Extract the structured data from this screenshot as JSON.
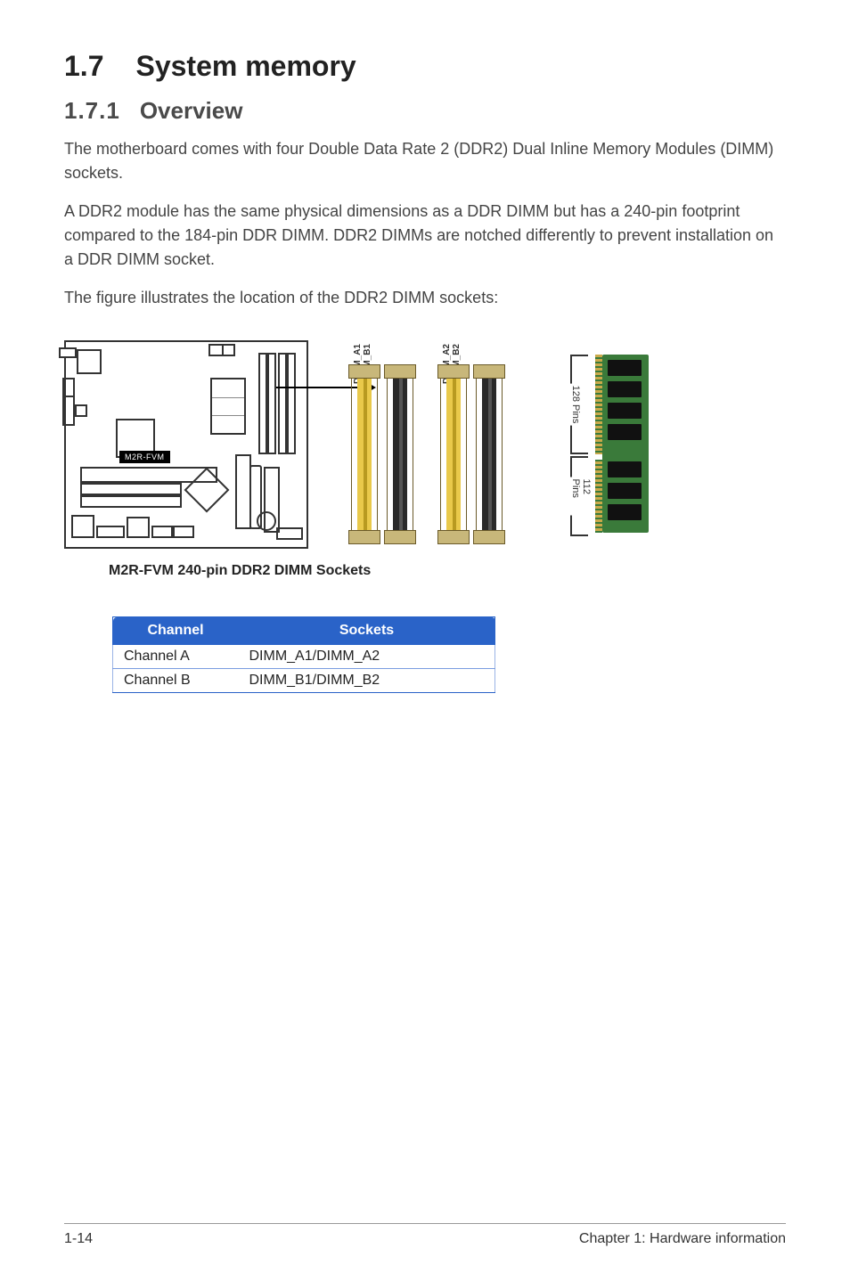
{
  "section": {
    "number": "1.7",
    "title": "System memory"
  },
  "subsection": {
    "number": "1.7.1",
    "title": "Overview"
  },
  "paragraphs": {
    "p1": "The motherboard comes with four Double Data Rate 2 (DDR2) Dual Inline Memory Modules (DIMM) sockets.",
    "p2": "A DDR2 module has the same physical dimensions as a DDR DIMM but has a 240-pin footprint compared to the 184-pin DDR DIMM. DDR2 DIMMs are notched differently to prevent installation on a DDR DIMM socket.",
    "p3": "The figure illustrates the location of the DDR2 DIMM sockets:"
  },
  "figure": {
    "board_label": "M2R-FVM",
    "dimm_labels": {
      "pair1_a": "DIMM_A1",
      "pair1_b": "DIMM_B1",
      "pair2_a": "DIMM_A2",
      "pair2_b": "DIMM_B2"
    },
    "pins_top": "128 Pins",
    "pins_bottom": "112 Pins",
    "slot_colors": {
      "yellow": "#e9c94a",
      "black": "#2a2a2a"
    },
    "caption": "M2R-FVM 240-pin DDR2 DIMM Sockets"
  },
  "channel_table": {
    "headers": {
      "col1": "Channel",
      "col2": "Sockets"
    },
    "rows": [
      {
        "channel": "Channel A",
        "sockets": "DIMM_A1/DIMM_A2"
      },
      {
        "channel": "Channel B",
        "sockets": "DIMM_B1/DIMM_B2"
      }
    ],
    "colors": {
      "header_bg": "#2a63c8",
      "header_text": "#ffffff",
      "row_border": "#7a9de0"
    }
  },
  "footer": {
    "left": "1-14",
    "right": "Chapter 1: Hardware information"
  }
}
